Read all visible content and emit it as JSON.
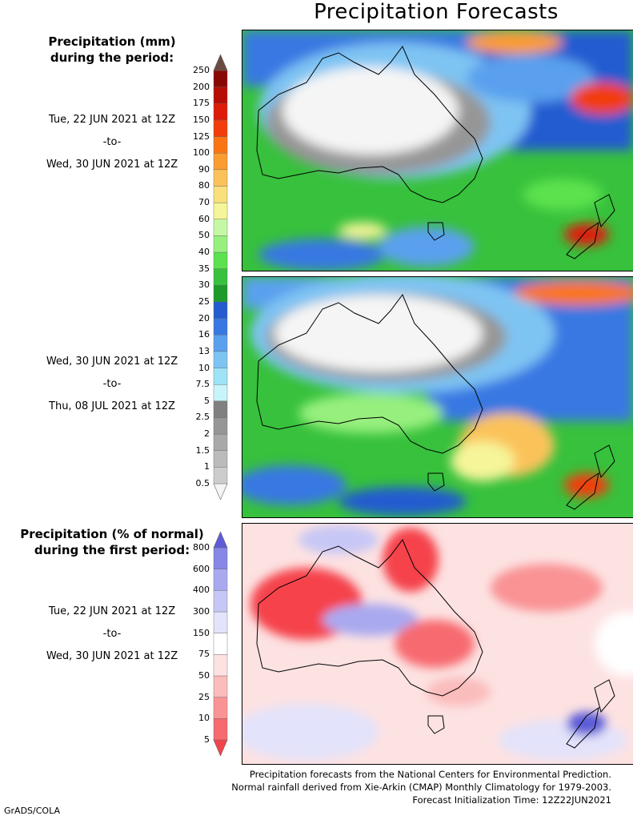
{
  "title": "Precipitation Forecasts",
  "mm_legend": {
    "heading_line1": "Precipitation (mm)",
    "heading_line2": "during the period:",
    "levels": [
      "0.5",
      "1",
      "1.5",
      "2",
      "2.5",
      "5",
      "7.5",
      "10",
      "13",
      "16",
      "20",
      "25",
      "30",
      "35",
      "40",
      "50",
      "60",
      "70",
      "80",
      "90",
      "100",
      "125",
      "150",
      "175",
      "200",
      "250"
    ],
    "colors": [
      "#f5f5f5",
      "#cccccc",
      "#bbbbbb",
      "#a9a9a9",
      "#969696",
      "#808080",
      "#c7f5fb",
      "#9fe3f7",
      "#7ec4f3",
      "#5aa0ee",
      "#3878e2",
      "#245cd0",
      "#1c9a2a",
      "#37c13c",
      "#5be24e",
      "#97f07e",
      "#c5f8a4",
      "#f6f59a",
      "#f9e07b",
      "#fbc25a",
      "#fb9c30",
      "#fa7414",
      "#f23d0a",
      "#de1a08",
      "#b80c06",
      "#8a0804",
      "#6b4a42"
    ]
  },
  "pct_legend": {
    "heading_line1": "Precipitation (% of normal)",
    "heading_line2": "during the first period:",
    "levels": [
      "5",
      "10",
      "25",
      "50",
      "75",
      "150",
      "300",
      "400",
      "600",
      "800"
    ],
    "colors": [
      "#f5434b",
      "#f76a6f",
      "#f99394",
      "#fbbcbc",
      "#fde2e2",
      "#ffffff",
      "#e3e3fb",
      "#c7c7f6",
      "#a9a9f0",
      "#8787e6",
      "#5c5cd8"
    ]
  },
  "periods": [
    {
      "start": "Tue, 22 JUN 2021 at 12Z",
      "sep": "-to-",
      "end": "Wed, 30 JUN 2021 at 12Z"
    },
    {
      "start": "Wed, 30 JUN 2021 at 12Z",
      "sep": "-to-",
      "end": "Thu, 08 JUL 2021 at 12Z"
    },
    {
      "start": "Tue, 22 JUN 2021 at 12Z",
      "sep": "-to-",
      "end": "Wed, 30 JUN 2021 at 12Z"
    }
  ],
  "footer": {
    "line1": "Precipitation forecasts from the National Centers for Environmental Prediction.",
    "line2": "Normal rainfall derived from Xie-Arkin (CMAP) Monthly Climatology for 1979-2003.",
    "line3": "Forecast Initialization Time: 12Z22JUN2021"
  },
  "credit": "GrADS/COLA",
  "chart_data": [
    {
      "type": "heatmap",
      "title": "Precipitation Forecasts",
      "variable": "Precipitation (mm)",
      "period": "Tue, 22 JUN 2021 at 12Z -to- Wed, 30 JUN 2021 at 12Z",
      "region": "Australia and New Zealand"
    },
    {
      "type": "heatmap",
      "variable": "Precipitation (mm)",
      "period": "Wed, 30 JUN 2021 at 12Z -to- Thu, 08 JUL 2021 at 12Z",
      "region": "Australia and New Zealand"
    },
    {
      "type": "heatmap",
      "variable": "Precipitation (% of normal)",
      "period": "Tue, 22 JUN 2021 at 12Z -to- Wed, 30 JUN 2021 at 12Z",
      "region": "Australia and New Zealand"
    }
  ]
}
